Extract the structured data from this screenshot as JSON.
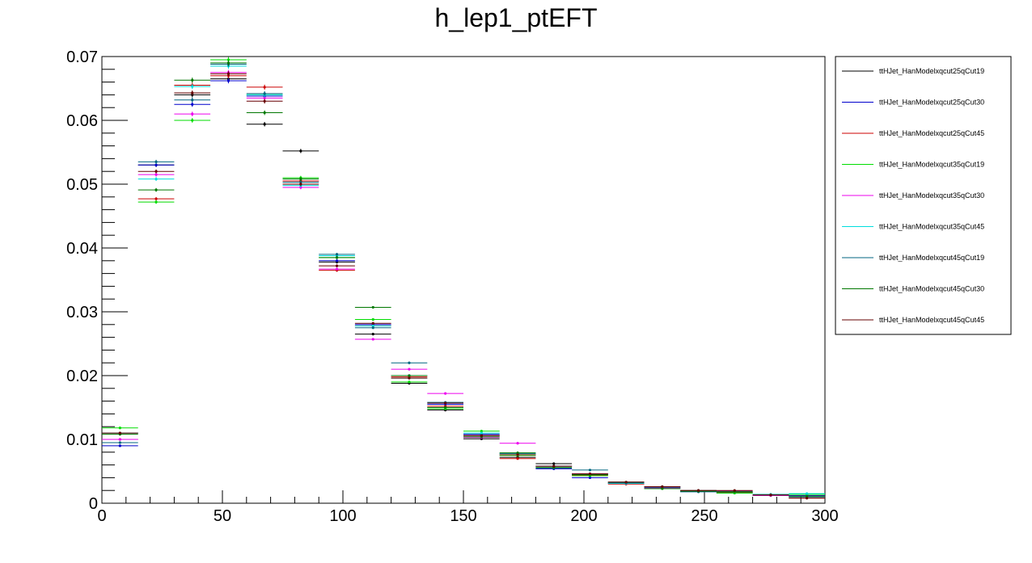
{
  "chart_data": {
    "type": "scatter",
    "title": "h_lep1_ptEFT",
    "xlabel": "",
    "ylabel": "",
    "xlim": [
      0,
      300
    ],
    "ylim": [
      0,
      0.07
    ],
    "grid": false,
    "legend_position": "right",
    "bin_edges": [
      0,
      15,
      30,
      45,
      60,
      75,
      90,
      105,
      120,
      135,
      150,
      165,
      180,
      195,
      210,
      225,
      240,
      255,
      270,
      285,
      300
    ],
    "x_ticks": [
      0,
      50,
      100,
      150,
      200,
      250,
      300
    ],
    "x_tick_labels": [
      "0",
      "50",
      "100",
      "150",
      "200",
      "250",
      "300"
    ],
    "y_ticks": [
      0,
      0.01,
      0.02,
      0.03,
      0.04,
      0.05,
      0.06,
      0.07
    ],
    "y_tick_labels": [
      "0",
      "0.01",
      "0.02",
      "0.03",
      "0.04",
      "0.05",
      "0.06",
      "0.07"
    ],
    "series": [
      {
        "name": "ttHJet_HanModelxqcut25qCut19",
        "color": "#000000",
        "values": [
          0.011,
          0.053,
          0.064,
          0.0665,
          0.0594,
          0.0552,
          0.0378,
          0.0265,
          0.0188,
          0.0146,
          0.0101,
          0.0072,
          0.0062,
          0.0046,
          0.0033,
          0.0026,
          0.002,
          0.0016,
          0.0013,
          0.0011
        ]
      },
      {
        "name": "ttHJet_HanModelxqcut25qCut30",
        "color": "#0000cc",
        "values": [
          0.009,
          0.053,
          0.0625,
          0.0662,
          0.0638,
          0.0505,
          0.038,
          0.028,
          0.02,
          0.0155,
          0.0108,
          0.0076,
          0.0054,
          0.004,
          0.0031,
          0.0024,
          0.0019,
          0.0017,
          0.0013,
          0.0012
        ]
      },
      {
        "name": "ttHJet_HanModelxqcut25qCut45",
        "color": "#cc0000",
        "values": [
          0.01,
          0.0477,
          0.0655,
          0.067,
          0.0652,
          0.0505,
          0.0365,
          0.0278,
          0.0198,
          0.0152,
          0.0106,
          0.007,
          0.0058,
          0.0044,
          0.003,
          0.0025,
          0.0018,
          0.0017,
          0.0012,
          0.0008
        ]
      },
      {
        "name": "ttHJet_HanModelxqcut35qCut19",
        "color": "#00dd00",
        "values": [
          0.0118,
          0.0472,
          0.06,
          0.0695,
          0.064,
          0.051,
          0.0385,
          0.0288,
          0.019,
          0.0148,
          0.0113,
          0.0075,
          0.0058,
          0.0043,
          0.0032,
          0.0023,
          0.0019,
          0.0016,
          0.0013,
          0.0014
        ]
      },
      {
        "name": "ttHJet_HanModelxqcut35qCut30",
        "color": "#ee00ee",
        "values": [
          0.01,
          0.0515,
          0.061,
          0.0675,
          0.0635,
          0.0495,
          0.0367,
          0.0257,
          0.021,
          0.0172,
          0.0103,
          0.0094,
          0.0058,
          0.0046,
          0.0031,
          0.0024,
          0.0018,
          0.0019,
          0.0012,
          0.0011
        ]
      },
      {
        "name": "ttHJet_HanModelxqcut35qCut45",
        "color": "#00dddd",
        "values": [
          0.011,
          0.0508,
          0.0653,
          0.0685,
          0.064,
          0.0498,
          0.0388,
          0.0278,
          0.0196,
          0.015,
          0.011,
          0.0078,
          0.0058,
          0.0045,
          0.0031,
          0.0026,
          0.0018,
          0.0018,
          0.0014,
          0.0015
        ]
      },
      {
        "name": "ttHJet_HanModelxqcut45qCut19",
        "color": "#006680",
        "values": [
          0.0095,
          0.0535,
          0.0632,
          0.0688,
          0.0642,
          0.0503,
          0.039,
          0.0275,
          0.022,
          0.0158,
          0.0106,
          0.0078,
          0.0055,
          0.0052,
          0.0032,
          0.0025,
          0.0018,
          0.0018,
          0.0013,
          0.001
        ]
      },
      {
        "name": "ttHJet_HanModelxqcut45qCut30",
        "color": "#007700",
        "values": [
          0.0108,
          0.0491,
          0.0663,
          0.069,
          0.0612,
          0.0508,
          0.0385,
          0.0307,
          0.02,
          0.015,
          0.0104,
          0.0079,
          0.0056,
          0.0045,
          0.0033,
          0.0023,
          0.0019,
          0.0018,
          0.0013,
          0.0011
        ]
      },
      {
        "name": "ttHJet_HanModelxqcut45qCut45",
        "color": "#660000",
        "values": [
          0.011,
          0.052,
          0.0643,
          0.0673,
          0.063,
          0.05,
          0.0372,
          0.0282,
          0.0196,
          0.0157,
          0.0106,
          0.0076,
          0.0058,
          0.0046,
          0.0033,
          0.0026,
          0.002,
          0.002,
          0.0013,
          0.0008
        ]
      }
    ]
  }
}
